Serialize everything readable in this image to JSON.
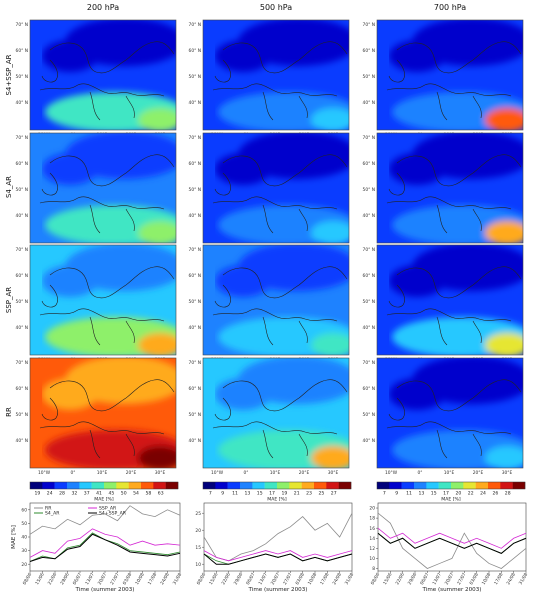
{
  "columns": [
    {
      "title": "200 hPa",
      "cbar_ticks": [
        "19",
        "24",
        "28",
        "32",
        "37",
        "41",
        "45",
        "50",
        "54",
        "58",
        "63"
      ],
      "cbar_label": "MAE [%]"
    },
    {
      "title": "500 hPa",
      "cbar_ticks": [
        "7",
        "9",
        "11",
        "13",
        "15",
        "17",
        "19",
        "21",
        "23",
        "25",
        "27"
      ],
      "cbar_label": "MAE [%]"
    },
    {
      "title": "700 hPa",
      "cbar_ticks": [
        "7",
        "9",
        "11",
        "13",
        "15",
        "17",
        "20",
        "22",
        "24",
        "26",
        "28"
      ],
      "cbar_label": "MAE [%]"
    }
  ],
  "rows": [
    "S4+SSP_AR",
    "S4_AR",
    "SSP_AR",
    "RR"
  ],
  "map_axes": {
    "lat_ticks": [
      "70° N",
      "60° N",
      "50° N",
      "40° N"
    ],
    "lon_ticks": [
      "10°W",
      "0°",
      "10°E",
      "20°E",
      "30°E"
    ]
  },
  "colors": {
    "scale": [
      "#00007a",
      "#0000cc",
      "#0a3cff",
      "#1e82ff",
      "#26c8ff",
      "#3fe6c4",
      "#8ef06a",
      "#e6e632",
      "#ffaa1e",
      "#ff5a0a",
      "#d21414",
      "#7a0000"
    ],
    "series": {
      "RR": "#8c8c8c",
      "S4_AR": "#2e8b2e",
      "SSP_AR": "#d42ad4",
      "S4+SSP_AR": "#000000"
    }
  },
  "chart_data": [
    {
      "type": "line",
      "panel": "200 hPa",
      "xlabel": "Time (summer 2003)",
      "ylabel": "MAE [%]",
      "x_ticks": [
        "08/06",
        "15/06",
        "22/06",
        "29/06",
        "06/07",
        "13/07",
        "20/07",
        "27/07",
        "03/08",
        "10/08",
        "17/08",
        "24/08",
        "31/08"
      ],
      "ylim": [
        15,
        65
      ],
      "y_ticks": [
        20,
        30,
        40,
        50,
        60
      ],
      "legend": [
        "RR",
        "S4_AR",
        "SSP_AR",
        "S4+SSP_AR"
      ],
      "series": [
        {
          "name": "RR",
          "values": [
            42,
            48,
            46,
            53,
            49,
            56,
            57,
            52,
            63,
            57,
            55,
            60,
            56
          ]
        },
        {
          "name": "S4_AR",
          "values": [
            22,
            26,
            24,
            32,
            34,
            43,
            38,
            35,
            30,
            29,
            28,
            27,
            29
          ]
        },
        {
          "name": "SSP_AR",
          "values": [
            25,
            30,
            28,
            37,
            39,
            46,
            42,
            40,
            34,
            37,
            34,
            35,
            34
          ]
        },
        {
          "name": "S4+SSP_AR",
          "values": [
            22,
            25,
            24,
            31,
            33,
            42,
            38,
            34,
            29,
            28,
            27,
            26,
            28
          ]
        }
      ]
    },
    {
      "type": "line",
      "panel": "500 hPa",
      "xlabel": "Time (summer 2003)",
      "ylabel": "",
      "x_ticks": [
        "08/06",
        "15/06",
        "22/06",
        "29/06",
        "06/07",
        "13/07",
        "20/07",
        "27/07",
        "03/08",
        "10/08",
        "17/08",
        "24/08",
        "31/08"
      ],
      "ylim": [
        8,
        28
      ],
      "y_ticks": [
        10,
        15,
        20,
        25
      ],
      "legend": [],
      "series": [
        {
          "name": "RR",
          "values": [
            18,
            12,
            11,
            13,
            14,
            16,
            19,
            21,
            24,
            20,
            22,
            18,
            25
          ]
        },
        {
          "name": "S4_AR",
          "values": [
            13,
            11,
            10,
            11,
            12,
            13,
            12,
            13,
            11,
            12,
            11,
            12,
            13
          ]
        },
        {
          "name": "SSP_AR",
          "values": [
            14,
            12,
            11,
            12,
            13,
            14,
            13,
            14,
            12,
            13,
            12,
            13,
            14
          ]
        },
        {
          "name": "S4+SSP_AR",
          "values": [
            13,
            10,
            10,
            11,
            12,
            13,
            12,
            13,
            11,
            12,
            11,
            12,
            13
          ]
        }
      ]
    },
    {
      "type": "line",
      "panel": "700 hPa",
      "xlabel": "Time (summer 2003)",
      "ylabel": "",
      "x_ticks": [
        "08/06",
        "15/06",
        "22/06",
        "29/06",
        "06/07",
        "13/07",
        "20/07",
        "27/07",
        "03/08",
        "10/08",
        "17/08",
        "24/08",
        "31/08"
      ],
      "ylim": [
        7.5,
        21
      ],
      "y_ticks": [
        8,
        10,
        12,
        14,
        16,
        18,
        20
      ],
      "legend": [],
      "series": [
        {
          "name": "RR",
          "values": [
            19,
            17,
            12,
            10,
            8,
            9,
            10,
            15,
            11,
            9,
            8,
            10,
            12
          ]
        },
        {
          "name": "S4_AR",
          "values": [
            15,
            13,
            14,
            12,
            13,
            14,
            13,
            12,
            13,
            12,
            11,
            13,
            14
          ]
        },
        {
          "name": "SSP_AR",
          "values": [
            16,
            14,
            15,
            13,
            14,
            15,
            14,
            13,
            14,
            13,
            12,
            14,
            15
          ]
        },
        {
          "name": "S4+SSP_AR",
          "values": [
            15,
            13,
            14,
            12,
            13,
            14,
            13,
            12,
            13,
            12,
            11,
            13,
            14
          ]
        }
      ]
    }
  ]
}
